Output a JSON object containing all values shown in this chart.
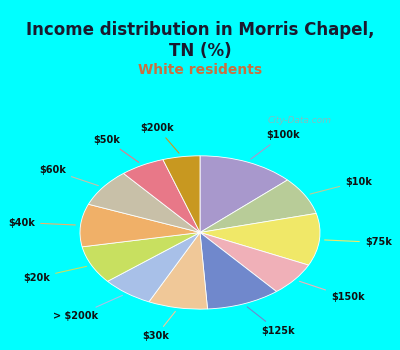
{
  "title": "Income distribution in Morris Chapel,\nTN (%)",
  "subtitle": "White residents",
  "title_color": "#1a1a2e",
  "subtitle_color": "#c87040",
  "bg_cyan": "#00ffff",
  "bg_chart": "#e8f5ee",
  "watermark": "City-Data.com",
  "labels": [
    "$100k",
    "$10k",
    "$75k",
    "$150k",
    "$125k",
    "$30k",
    "> $200k",
    "$20k",
    "$40k",
    "$60k",
    "$50k",
    "$200k"
  ],
  "values": [
    13,
    8,
    11,
    7,
    10,
    8,
    7,
    8,
    9,
    8,
    6,
    5
  ],
  "colors": [
    "#a898cc",
    "#b8cc98",
    "#f0e868",
    "#f0b0b8",
    "#7088cc",
    "#f0c898",
    "#a8c0e8",
    "#c8e060",
    "#f0b068",
    "#c8c0a8",
    "#e87888",
    "#c89820"
  ],
  "figsize": [
    4.0,
    3.5
  ],
  "dpi": 100,
  "title_fontsize": 12,
  "subtitle_fontsize": 10
}
